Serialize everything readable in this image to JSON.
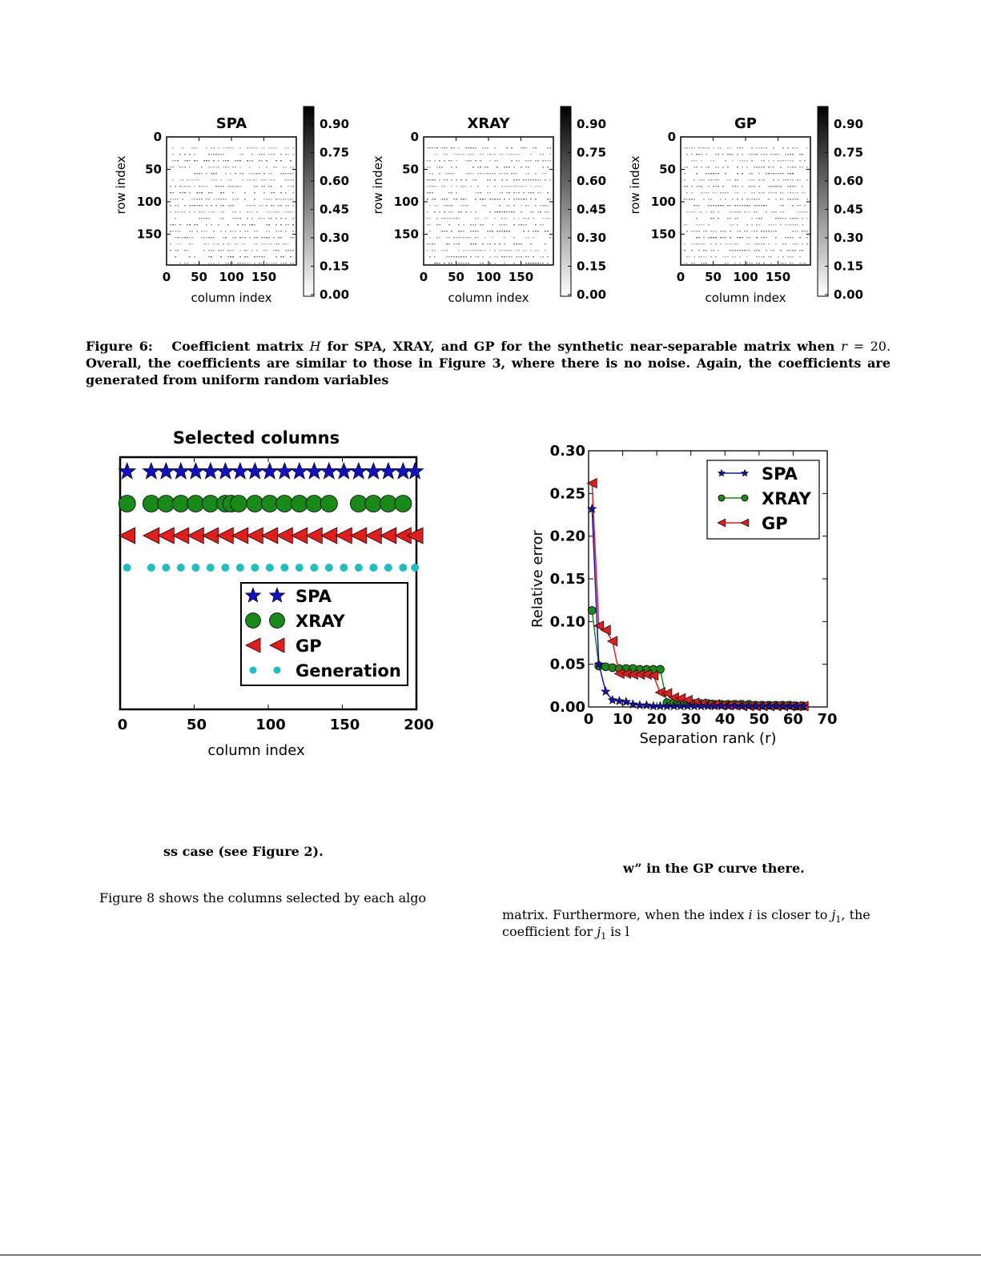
{
  "heatmaps": [
    {
      "title": "SPA",
      "variant": 0
    },
    {
      "title": "XRAY",
      "variant": 1
    },
    {
      "title": "GP",
      "variant": 2
    }
  ],
  "heatmap_axes": {
    "ylabel": "row index",
    "xlabel": "column index",
    "yticks": [
      "0",
      "50",
      "100",
      "150"
    ],
    "xticks": [
      "0",
      "50",
      "100",
      "150"
    ],
    "colorbar_ticks": [
      "0.90",
      "0.75",
      "0.60",
      "0.45",
      "0.30",
      "0.15",
      "0.00"
    ]
  },
  "caption": {
    "label": "Figure 6:",
    "text_a": "Coefficient matrix",
    "var_h": "H",
    "text_b": "for SPA, XRAY, and GP for the synthetic near-separable matrix when",
    "var_r": "r",
    "text_c": "= 20.",
    "text_d": "Overall, the coefficients are similar to those in Figure 3, where there is no noise. Again, the coefficients are generated from uniform random variables"
  },
  "fragments": {
    "left_bold": "ss case (see Figure 2).",
    "right_bold": "w” in the GP curve there.",
    "left_text": "Figure 8 shows the columns selected by each algo",
    "right_text_1": "matrix. Furthermore, when the index",
    "right_var_i": "i",
    "right_text_2": "is closer to",
    "right_var_j1": "j",
    "right_sub_1": "1",
    "right_text_3": ", the",
    "right_text_4": "coefficient for",
    "right_text_5": "is l"
  },
  "chart_data": [
    {
      "type": "scatter",
      "title": "Selected columns",
      "xlabel": "column index",
      "ylabel": "",
      "xlim": [
        0,
        200
      ],
      "xticks": [
        "0",
        "50",
        "100",
        "150",
        "200"
      ],
      "legend_position": "lower-right",
      "series": [
        {
          "name": "SPA",
          "marker": "star",
          "color": "#1010c0",
          "x": [
            2,
            21,
            31,
            41,
            51,
            61,
            71,
            81,
            91,
            101,
            111,
            121,
            131,
            141,
            151,
            161,
            171,
            181,
            191,
            199
          ]
        },
        {
          "name": "XRAY",
          "marker": "circle",
          "color": "#178a17",
          "x": [
            2,
            21,
            31,
            41,
            51,
            61,
            71,
            75,
            80,
            91,
            101,
            111,
            121,
            131,
            141,
            161,
            171,
            181,
            191
          ]
        },
        {
          "name": "GP",
          "marker": "triangle-left",
          "color": "#e51c1c",
          "x": [
            2,
            21,
            31,
            41,
            51,
            61,
            71,
            81,
            91,
            101,
            111,
            121,
            131,
            141,
            151,
            161,
            171,
            181,
            191,
            199
          ]
        },
        {
          "name": "Generation",
          "marker": "dot",
          "color": "#1fbfbf",
          "x": [
            2,
            21,
            31,
            41,
            51,
            61,
            71,
            81,
            91,
            101,
            111,
            121,
            131,
            141,
            151,
            161,
            171,
            181,
            191,
            199
          ]
        }
      ]
    },
    {
      "type": "line",
      "title": "",
      "xlabel": "Separation rank (r)",
      "ylabel": "Relative error",
      "xlim": [
        0,
        70
      ],
      "ylim": [
        0,
        0.3
      ],
      "xticks": [
        "0",
        "10",
        "20",
        "30",
        "40",
        "50",
        "60",
        "70"
      ],
      "yticks": [
        "0.00",
        "0.05",
        "0.10",
        "0.15",
        "0.20",
        "0.25",
        "0.30"
      ],
      "legend_position": "upper-right",
      "series": [
        {
          "name": "SPA",
          "marker": "star",
          "color": "#1010c0",
          "x": [
            1,
            3,
            5,
            7,
            9,
            11,
            13,
            15,
            17,
            19,
            21,
            23,
            25,
            27,
            29,
            31,
            33,
            35,
            37,
            39,
            41,
            43,
            45,
            47,
            49,
            51,
            53,
            55,
            57,
            59,
            61,
            63
          ],
          "y": [
            0.232,
            0.05,
            0.018,
            0.008,
            0.007,
            0.006,
            0.003,
            0.002,
            0.002,
            0.001,
            0.001,
            0.001,
            0.001,
            0.001,
            0.001,
            0.001,
            0.001,
            0.001,
            0.001,
            0.001,
            0.001,
            0.001,
            0.001,
            0.001,
            0.001,
            0.001,
            0.001,
            0.001,
            0.001,
            0.001,
            0.001,
            0.001
          ]
        },
        {
          "name": "XRAY",
          "marker": "circle",
          "color": "#178a17",
          "x": [
            1,
            3,
            5,
            7,
            9,
            11,
            13,
            15,
            17,
            19,
            21,
            23,
            25,
            27,
            29,
            31,
            33,
            35,
            37,
            39,
            41,
            43,
            45,
            47,
            49,
            51,
            53,
            55,
            57,
            59,
            61,
            63
          ],
          "y": [
            0.113,
            0.048,
            0.047,
            0.046,
            0.045,
            0.045,
            0.045,
            0.044,
            0.044,
            0.044,
            0.044,
            0.005,
            0.005,
            0.005,
            0.004,
            0.004,
            0.004,
            0.004,
            0.003,
            0.003,
            0.003,
            0.003,
            0.003,
            0.003,
            0.002,
            0.002,
            0.002,
            0.002,
            0.002,
            0.002,
            0.001,
            0.001
          ]
        },
        {
          "name": "GP",
          "marker": "triangle-left",
          "color": "#e51c1c",
          "x": [
            1,
            3,
            5,
            7,
            9,
            11,
            13,
            15,
            17,
            19,
            21,
            23,
            25,
            27,
            29,
            31,
            33,
            35,
            37,
            39,
            41,
            43,
            45,
            47,
            49,
            51,
            53,
            55,
            57,
            59,
            61,
            63
          ],
          "y": [
            0.262,
            0.095,
            0.09,
            0.077,
            0.039,
            0.039,
            0.038,
            0.038,
            0.038,
            0.037,
            0.017,
            0.016,
            0.011,
            0.01,
            0.008,
            0.005,
            0.004,
            0.003,
            0.003,
            0.002,
            0.002,
            0.002,
            0.001,
            0.001,
            0.001,
            0.001,
            0.001,
            0.001,
            0.001,
            0.001,
            0.001,
            0.001
          ]
        }
      ]
    }
  ]
}
